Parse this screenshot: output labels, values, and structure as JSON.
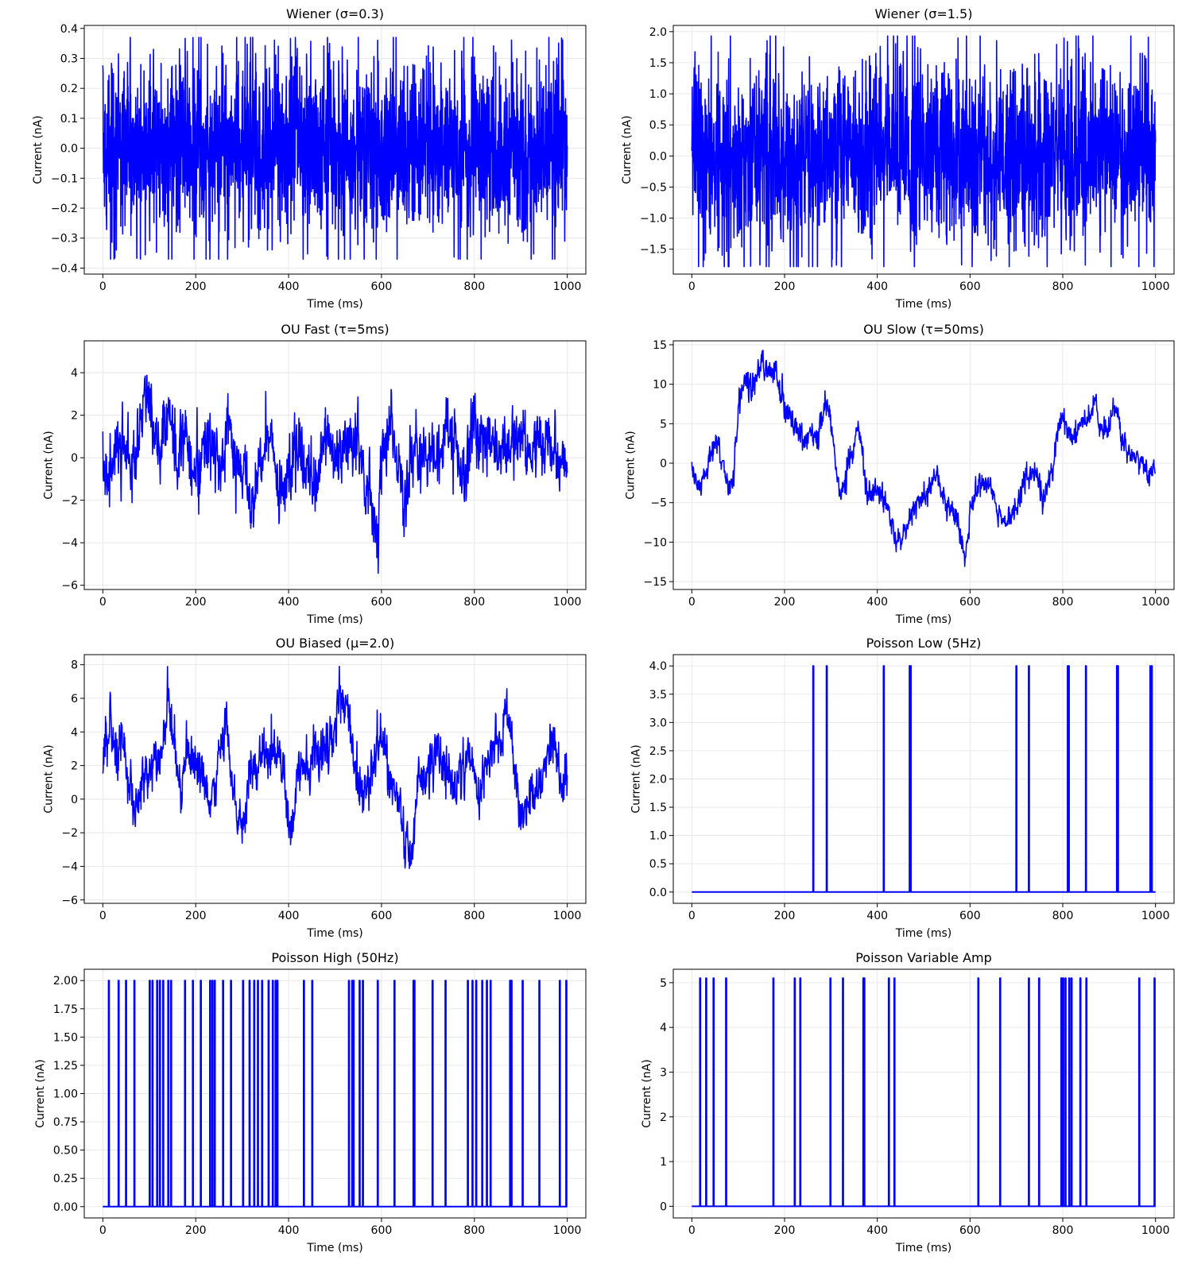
{
  "chart_data": [
    {
      "type": "line",
      "title": "Wiener (σ=0.3)",
      "xlabel": "Time (ms)",
      "ylabel": "Current (nA)",
      "xlim": [
        -40,
        1040
      ],
      "ylim": [
        -0.42,
        0.41
      ],
      "xticks": [
        0,
        200,
        400,
        600,
        800,
        1000
      ],
      "xtick_labels": [
        "0",
        "200",
        "400",
        "600",
        "800",
        "1000"
      ],
      "yticks": [
        -0.4,
        -0.3,
        -0.2,
        -0.1,
        0.0,
        0.1,
        0.2,
        0.3,
        0.4
      ],
      "ytick_labels": [
        "−0.4",
        "−0.3",
        "−0.2",
        "−0.1",
        "0.0",
        "0.1",
        "0.2",
        "0.3",
        "0.4"
      ],
      "grid": true,
      "color": "#0000ff",
      "signal": {
        "kind": "white_noise",
        "sigma": 0.3,
        "mean": 0,
        "min": -0.37,
        "max": 0.37
      }
    },
    {
      "type": "line",
      "title": "Wiener (σ=1.5)",
      "xlabel": "Time (ms)",
      "ylabel": "Current (nA)",
      "xlim": [
        -40,
        1040
      ],
      "ylim": [
        -1.9,
        2.1
      ],
      "xticks": [
        0,
        200,
        400,
        600,
        800,
        1000
      ],
      "xtick_labels": [
        "0",
        "200",
        "400",
        "600",
        "800",
        "1000"
      ],
      "yticks": [
        -1.5,
        -1.0,
        -0.5,
        0.0,
        0.5,
        1.0,
        1.5,
        2.0
      ],
      "ytick_labels": [
        "−1.5",
        "−1.0",
        "−0.5",
        "0.0",
        "0.5",
        "1.0",
        "1.5",
        "2.0"
      ],
      "grid": true,
      "color": "#0000ff",
      "signal": {
        "kind": "white_noise",
        "sigma": 1.5,
        "mean": 0,
        "min": -1.78,
        "max": 1.93
      }
    },
    {
      "type": "line",
      "title": "OU Fast (τ=5ms)",
      "xlabel": "Time (ms)",
      "ylabel": "Current (nA)",
      "xlim": [
        -40,
        1040
      ],
      "ylim": [
        -6.2,
        5.5
      ],
      "xticks": [
        0,
        200,
        400,
        600,
        800,
        1000
      ],
      "xtick_labels": [
        "0",
        "200",
        "400",
        "600",
        "800",
        "1000"
      ],
      "yticks": [
        -6,
        -4,
        -2,
        0,
        2,
        4
      ],
      "ytick_labels": [
        "−6",
        "−4",
        "−2",
        "0",
        "2",
        "4"
      ],
      "grid": true,
      "color": "#0000ff",
      "envelope": [
        [
          0,
          0.2
        ],
        [
          10,
          -1.6
        ],
        [
          20,
          -1.0
        ],
        [
          30,
          0.6
        ],
        [
          40,
          0.9
        ],
        [
          50,
          0.1
        ],
        [
          60,
          -0.9
        ],
        [
          70,
          0.4
        ],
        [
          80,
          1.7
        ],
        [
          90,
          3.0
        ],
        [
          100,
          2.6
        ],
        [
          110,
          1.6
        ],
        [
          120,
          0.2
        ],
        [
          130,
          1.0
        ],
        [
          140,
          2.6
        ],
        [
          150,
          1.6
        ],
        [
          160,
          -0.4
        ],
        [
          170,
          0.9
        ],
        [
          180,
          0.6
        ],
        [
          200,
          -0.6
        ],
        [
          220,
          0.5
        ],
        [
          240,
          0.2
        ],
        [
          260,
          -0.4
        ],
        [
          270,
          1.9
        ],
        [
          280,
          0.4
        ],
        [
          300,
          -1.0
        ],
        [
          320,
          -2.1
        ],
        [
          340,
          0.3
        ],
        [
          360,
          0.8
        ],
        [
          380,
          -2.2
        ],
        [
          400,
          -0.6
        ],
        [
          420,
          0.8
        ],
        [
          440,
          -0.7
        ],
        [
          460,
          -1.4
        ],
        [
          480,
          1.1
        ],
        [
          500,
          -0.2
        ],
        [
          520,
          0.6
        ],
        [
          540,
          1.3
        ],
        [
          560,
          -0.9
        ],
        [
          580,
          -2.2
        ],
        [
          590,
          -3.6
        ],
        [
          600,
          -0.7
        ],
        [
          620,
          1.4
        ],
        [
          640,
          -0.5
        ],
        [
          650,
          -2.3
        ],
        [
          660,
          -0.4
        ],
        [
          680,
          0.6
        ],
        [
          700,
          0.4
        ],
        [
          720,
          -0.2
        ],
        [
          740,
          1.2
        ],
        [
          760,
          0.6
        ],
        [
          780,
          -0.8
        ],
        [
          800,
          1.9
        ],
        [
          820,
          0.4
        ],
        [
          840,
          1.7
        ],
        [
          860,
          -0.3
        ],
        [
          880,
          0.9
        ],
        [
          900,
          1.1
        ],
        [
          920,
          -0.2
        ],
        [
          940,
          0.5
        ],
        [
          960,
          0.8
        ],
        [
          980,
          -0.4
        ],
        [
          1000,
          -0.5
        ]
      ],
      "noise_sigma": 0.75,
      "signal": {
        "kind": "ou",
        "tau": 5,
        "min": -5.6,
        "max": 5.0
      }
    },
    {
      "type": "line",
      "title": "OU Slow (τ=50ms)",
      "xlabel": "Time (ms)",
      "ylabel": "Current (nA)",
      "xlim": [
        -40,
        1040
      ],
      "ylim": [
        -16,
        15.5
      ],
      "xticks": [
        0,
        200,
        400,
        600,
        800,
        1000
      ],
      "xtick_labels": [
        "0",
        "200",
        "400",
        "600",
        "800",
        "1000"
      ],
      "yticks": [
        -15,
        -10,
        -5,
        0,
        5,
        10,
        15
      ],
      "ytick_labels": [
        "−15",
        "−10",
        "−5",
        "0",
        "5",
        "10",
        "15"
      ],
      "grid": true,
      "color": "#0000ff",
      "envelope": [
        [
          0,
          0.5
        ],
        [
          10,
          -2.5
        ],
        [
          20,
          -3.0
        ],
        [
          30,
          -1.5
        ],
        [
          40,
          0.5
        ],
        [
          50,
          2.5
        ],
        [
          60,
          1.5
        ],
        [
          70,
          -1.0
        ],
        [
          80,
          -3.0
        ],
        [
          90,
          -2.0
        ],
        [
          100,
          6.5
        ],
        [
          110,
          9.5
        ],
        [
          120,
          10.5
        ],
        [
          130,
          9.0
        ],
        [
          140,
          11.0
        ],
        [
          150,
          13.0
        ],
        [
          160,
          12.0
        ],
        [
          170,
          11.5
        ],
        [
          180,
          12.5
        ],
        [
          190,
          9.5
        ],
        [
          200,
          7.0
        ],
        [
          220,
          5.0
        ],
        [
          240,
          3.0
        ],
        [
          260,
          4.0
        ],
        [
          270,
          3.0
        ],
        [
          280,
          5.0
        ],
        [
          290,
          8.0
        ],
        [
          300,
          5.0
        ],
        [
          310,
          0.0
        ],
        [
          320,
          -4.5
        ],
        [
          330,
          -2.5
        ],
        [
          340,
          1.0
        ],
        [
          350,
          2.0
        ],
        [
          360,
          4.5
        ],
        [
          370,
          0.0
        ],
        [
          380,
          -4.0
        ],
        [
          390,
          -3.5
        ],
        [
          400,
          -3.5
        ],
        [
          420,
          -5.0
        ],
        [
          440,
          -9.5
        ],
        [
          450,
          -10.0
        ],
        [
          460,
          -8.5
        ],
        [
          480,
          -5.5
        ],
        [
          500,
          -4.5
        ],
        [
          520,
          -2.0
        ],
        [
          530,
          -1.0
        ],
        [
          540,
          -4.0
        ],
        [
          560,
          -6.0
        ],
        [
          580,
          -8.5
        ],
        [
          590,
          -13.0
        ],
        [
          600,
          -6.0
        ],
        [
          620,
          -3.0
        ],
        [
          640,
          -2.5
        ],
        [
          650,
          -4.5
        ],
        [
          660,
          -7.0
        ],
        [
          680,
          -7.5
        ],
        [
          700,
          -6.5
        ],
        [
          720,
          -1.5
        ],
        [
          740,
          -1.0
        ],
        [
          760,
          -5.0
        ],
        [
          780,
          0.0
        ],
        [
          790,
          4.5
        ],
        [
          800,
          5.5
        ],
        [
          820,
          3.0
        ],
        [
          840,
          5.5
        ],
        [
          860,
          6.0
        ],
        [
          870,
          7.5
        ],
        [
          880,
          4.5
        ],
        [
          900,
          4.5
        ],
        [
          910,
          7.0
        ],
        [
          920,
          5.5
        ],
        [
          930,
          2.5
        ],
        [
          950,
          1.0
        ],
        [
          970,
          0.5
        ],
        [
          980,
          -1.0
        ],
        [
          990,
          -1.5
        ],
        [
          1000,
          -1.0
        ]
      ],
      "noise_sigma": 0.75,
      "signal": {
        "kind": "ou",
        "tau": 50,
        "min": -14.8,
        "max": 14.3
      }
    },
    {
      "type": "line",
      "title": "OU Biased (μ=2.0)",
      "xlabel": "Time (ms)",
      "ylabel": "Current (nA)",
      "xlim": [
        -40,
        1040
      ],
      "ylim": [
        -6.2,
        8.6
      ],
      "xticks": [
        0,
        200,
        400,
        600,
        800,
        1000
      ],
      "xtick_labels": [
        "0",
        "200",
        "400",
        "600",
        "800",
        "1000"
      ],
      "yticks": [
        -6,
        -4,
        -2,
        0,
        2,
        4,
        6,
        8
      ],
      "ytick_labels": [
        "−6",
        "−4",
        "−2",
        "0",
        "2",
        "4",
        "6",
        "8"
      ],
      "grid": true,
      "color": "#0000ff",
      "envelope": [
        [
          0,
          2.2
        ],
        [
          10,
          3.5
        ],
        [
          15,
          5.0
        ],
        [
          20,
          3.5
        ],
        [
          30,
          2.5
        ],
        [
          40,
          3.0
        ],
        [
          50,
          2.5
        ],
        [
          60,
          0.0
        ],
        [
          70,
          -1.0
        ],
        [
          80,
          0.5
        ],
        [
          90,
          1.5
        ],
        [
          100,
          2.0
        ],
        [
          110,
          2.5
        ],
        [
          120,
          2.0
        ],
        [
          130,
          3.5
        ],
        [
          140,
          6.0
        ],
        [
          150,
          4.0
        ],
        [
          160,
          2.0
        ],
        [
          170,
          0.0
        ],
        [
          180,
          3.0
        ],
        [
          200,
          2.0
        ],
        [
          220,
          1.0
        ],
        [
          230,
          -0.5
        ],
        [
          240,
          1.0
        ],
        [
          260,
          3.5
        ],
        [
          265,
          5.0
        ],
        [
          270,
          3.0
        ],
        [
          280,
          1.0
        ],
        [
          290,
          -1.0
        ],
        [
          300,
          -2.0
        ],
        [
          310,
          0.5
        ],
        [
          320,
          2.0
        ],
        [
          340,
          2.5
        ],
        [
          360,
          3.0
        ],
        [
          380,
          3.0
        ],
        [
          390,
          1.5
        ],
        [
          400,
          -1.0
        ],
        [
          410,
          -2.0
        ],
        [
          420,
          2.5
        ],
        [
          440,
          2.0
        ],
        [
          460,
          2.5
        ],
        [
          480,
          3.0
        ],
        [
          500,
          4.0
        ],
        [
          510,
          6.5
        ],
        [
          520,
          5.5
        ],
        [
          530,
          4.5
        ],
        [
          540,
          2.0
        ],
        [
          560,
          0.0
        ],
        [
          580,
          2.0
        ],
        [
          590,
          3.0
        ],
        [
          600,
          4.5
        ],
        [
          610,
          2.5
        ],
        [
          620,
          1.0
        ],
        [
          640,
          -0.5
        ],
        [
          650,
          -2.5
        ],
        [
          660,
          -3.5
        ],
        [
          670,
          -1.0
        ],
        [
          680,
          1.0
        ],
        [
          700,
          1.5
        ],
        [
          720,
          3.5
        ],
        [
          730,
          2.0
        ],
        [
          740,
          1.5
        ],
        [
          760,
          1.0
        ],
        [
          780,
          2.0
        ],
        [
          800,
          2.0
        ],
        [
          810,
          -0.5
        ],
        [
          820,
          1.5
        ],
        [
          840,
          3.0
        ],
        [
          860,
          4.0
        ],
        [
          870,
          6.0
        ],
        [
          880,
          3.5
        ],
        [
          890,
          1.0
        ],
        [
          900,
          -1.5
        ],
        [
          920,
          0.0
        ],
        [
          940,
          1.0
        ],
        [
          960,
          2.5
        ],
        [
          970,
          4.0
        ],
        [
          980,
          2.0
        ],
        [
          990,
          1.0
        ],
        [
          1000,
          1.5
        ]
      ],
      "noise_sigma": 0.7,
      "signal": {
        "kind": "ou",
        "mu": 2.0,
        "min": -5.4,
        "max": 7.9
      }
    },
    {
      "type": "line",
      "title": "Poisson Low (5Hz)",
      "xlabel": "Time (ms)",
      "ylabel": "Current (nA)",
      "xlim": [
        -40,
        1040
      ],
      "ylim": [
        -0.2,
        4.2
      ],
      "xticks": [
        0,
        200,
        400,
        600,
        800,
        1000
      ],
      "xtick_labels": [
        "0",
        "200",
        "400",
        "600",
        "800",
        "1000"
      ],
      "yticks": [
        0.0,
        0.5,
        1.0,
        1.5,
        2.0,
        2.5,
        3.0,
        3.5,
        4.0
      ],
      "ytick_labels": [
        "0.0",
        "0.5",
        "1.0",
        "1.5",
        "2.0",
        "2.5",
        "3.0",
        "3.5",
        "4.0"
      ],
      "grid": true,
      "color": "#0000ff",
      "baseline": 0,
      "spike_amplitude": 4.0,
      "spike_times": [
        262,
        291,
        414,
        470,
        472,
        700,
        727,
        811,
        813,
        850,
        917,
        919,
        989,
        992
      ]
    },
    {
      "type": "line",
      "title": "Poisson High (50Hz)",
      "xlabel": "Time (ms)",
      "ylabel": "Current (nA)",
      "xlim": [
        -40,
        1040
      ],
      "ylim": [
        -0.1,
        2.1
      ],
      "xticks": [
        0,
        200,
        400,
        600,
        800,
        1000
      ],
      "xtick_labels": [
        "0",
        "200",
        "400",
        "600",
        "800",
        "1000"
      ],
      "yticks": [
        0.0,
        0.25,
        0.5,
        0.75,
        1.0,
        1.25,
        1.5,
        1.75,
        2.0
      ],
      "ytick_labels": [
        "0.00",
        "0.25",
        "0.50",
        "0.75",
        "1.00",
        "1.25",
        "1.50",
        "1.75",
        "2.00"
      ],
      "grid": true,
      "color": "#0000ff",
      "baseline": 0,
      "spike_amplitude": 2.0,
      "spike_times": [
        13,
        34,
        50,
        68,
        101,
        107,
        117,
        123,
        130,
        141,
        147,
        177,
        194,
        211,
        231,
        236,
        241,
        259,
        276,
        302,
        316,
        326,
        334,
        343,
        357,
        366,
        372,
        376,
        433,
        451,
        530,
        537,
        540,
        553,
        560,
        592,
        628,
        669,
        671,
        710,
        738,
        786,
        796,
        804,
        817,
        827,
        835,
        877,
        880,
        904,
        940,
        984,
        998
      ]
    },
    {
      "type": "line",
      "title": "Poisson Variable Amp",
      "xlabel": "Time (ms)",
      "ylabel": "Current (nA)",
      "xlim": [
        -40,
        1040
      ],
      "ylim": [
        -0.26,
        5.3
      ],
      "xticks": [
        0,
        200,
        400,
        600,
        800,
        1000
      ],
      "xtick_labels": [
        "0",
        "200",
        "400",
        "600",
        "800",
        "1000"
      ],
      "yticks": [
        0,
        1,
        2,
        3,
        4,
        5
      ],
      "ytick_labels": [
        "0",
        "1",
        "2",
        "3",
        "4",
        "5"
      ],
      "grid": true,
      "color": "#0000ff",
      "baseline": 0,
      "spike_amplitude": 5.1,
      "spike_times": [
        18,
        31,
        47,
        74,
        176,
        222,
        234,
        299,
        326,
        370,
        372,
        425,
        437,
        618,
        665,
        727,
        749,
        797,
        801,
        806,
        814,
        819,
        838,
        851,
        965,
        998
      ]
    }
  ]
}
